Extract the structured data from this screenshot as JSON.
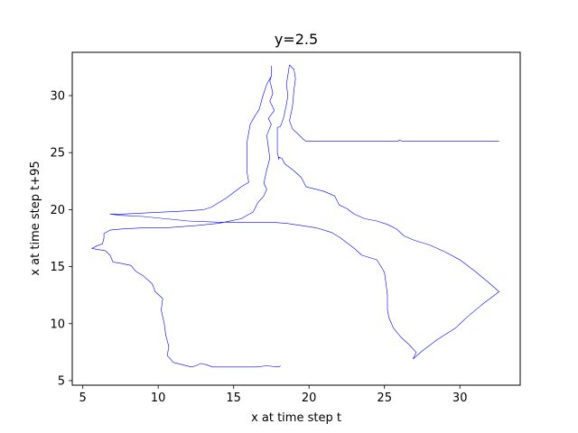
{
  "chart_data": {
    "type": "line",
    "title": "y=2.5",
    "xlabel": "x at time step t",
    "ylabel": "x at time step t+95",
    "xlim": [
      4.3,
      34.0
    ],
    "ylim": [
      4.6,
      33.8
    ],
    "xticks": [
      5,
      10,
      15,
      20,
      25,
      30
    ],
    "yticks": [
      5,
      10,
      15,
      20,
      25,
      30
    ],
    "grid": false,
    "series": [
      {
        "name": "phase trajectory",
        "color": "#0000ff",
        "points": [
          [
            18.1,
            6.3
          ],
          [
            18.0,
            6.2
          ],
          [
            17.2,
            6.3
          ],
          [
            16.5,
            6.2
          ],
          [
            15.5,
            6.2
          ],
          [
            14.5,
            6.2
          ],
          [
            13.6,
            6.2
          ],
          [
            13.2,
            6.4
          ],
          [
            12.8,
            6.5
          ],
          [
            12.5,
            6.3
          ],
          [
            12.2,
            6.2
          ],
          [
            11.6,
            6.4
          ],
          [
            11.0,
            6.6
          ],
          [
            10.6,
            7.2
          ],
          [
            10.7,
            8.0
          ],
          [
            10.5,
            9.0
          ],
          [
            10.4,
            10.0
          ],
          [
            10.2,
            11.2
          ],
          [
            10.3,
            12.2
          ],
          [
            9.8,
            12.8
          ],
          [
            9.6,
            13.5
          ],
          [
            9.0,
            14.2
          ],
          [
            8.5,
            14.6
          ],
          [
            8.2,
            15.1
          ],
          [
            7.5,
            15.3
          ],
          [
            7.0,
            15.4
          ],
          [
            6.8,
            16.0
          ],
          [
            6.5,
            16.4
          ],
          [
            6.0,
            16.5
          ],
          [
            5.6,
            16.6
          ],
          [
            5.9,
            16.8
          ],
          [
            6.3,
            17.0
          ],
          [
            6.4,
            17.5
          ],
          [
            6.4,
            17.9
          ],
          [
            6.8,
            18.2
          ],
          [
            7.5,
            18.3
          ],
          [
            9.0,
            18.4
          ],
          [
            10.5,
            18.4
          ],
          [
            12.5,
            18.6
          ],
          [
            14.0,
            18.8
          ],
          [
            15.5,
            19.2
          ],
          [
            16.3,
            19.8
          ],
          [
            16.6,
            20.6
          ],
          [
            17.0,
            21.2
          ],
          [
            17.2,
            21.8
          ],
          [
            17.0,
            22.3
          ],
          [
            17.2,
            23.5
          ],
          [
            17.4,
            24.5
          ],
          [
            17.3,
            25.5
          ],
          [
            17.2,
            26.5
          ],
          [
            17.5,
            27.5
          ],
          [
            17.3,
            28.0
          ],
          [
            17.7,
            28.7
          ],
          [
            17.4,
            29.5
          ],
          [
            17.6,
            30.2
          ],
          [
            17.5,
            30.8
          ],
          [
            17.4,
            31.3
          ],
          [
            17.5,
            31.7
          ],
          [
            17.5,
            32.6
          ],
          [
            17.5,
            31.7
          ],
          [
            17.2,
            31.0
          ],
          [
            16.9,
            29.8
          ],
          [
            16.7,
            28.8
          ],
          [
            16.4,
            28.2
          ],
          [
            16.1,
            27.5
          ],
          [
            15.9,
            26.0
          ],
          [
            15.9,
            24.5
          ],
          [
            15.9,
            23.2
          ],
          [
            16.0,
            22.4
          ],
          [
            15.5,
            22.0
          ],
          [
            15.0,
            21.5
          ],
          [
            14.5,
            21.0
          ],
          [
            14.0,
            20.6
          ],
          [
            13.5,
            20.2
          ],
          [
            13.0,
            20.0
          ],
          [
            12.0,
            19.9
          ],
          [
            10.5,
            19.8
          ],
          [
            9.0,
            19.7
          ],
          [
            7.5,
            19.6
          ],
          [
            6.8,
            19.6
          ],
          [
            7.5,
            19.5
          ],
          [
            9.0,
            19.4
          ],
          [
            10.5,
            19.2
          ],
          [
            12.0,
            19.0
          ],
          [
            14.0,
            18.9
          ],
          [
            16.0,
            18.9
          ],
          [
            17.5,
            18.9
          ],
          [
            18.5,
            18.8
          ],
          [
            19.5,
            18.6
          ],
          [
            20.5,
            18.4
          ],
          [
            21.5,
            18.0
          ],
          [
            22.0,
            17.6
          ],
          [
            22.5,
            17.1
          ],
          [
            23.0,
            16.6
          ],
          [
            23.5,
            16.0
          ],
          [
            24.0,
            15.8
          ],
          [
            24.5,
            15.6
          ],
          [
            25.0,
            14.5
          ],
          [
            25.1,
            13.5
          ],
          [
            25.2,
            12.5
          ],
          [
            25.2,
            11.2
          ],
          [
            25.3,
            10.5
          ],
          [
            25.6,
            9.6
          ],
          [
            26.1,
            8.8
          ],
          [
            26.6,
            8.2
          ],
          [
            27.1,
            7.5
          ],
          [
            26.9,
            6.9
          ],
          [
            27.5,
            7.6
          ],
          [
            28.5,
            8.6
          ],
          [
            29.7,
            9.6
          ],
          [
            30.5,
            10.6
          ],
          [
            31.5,
            11.7
          ],
          [
            32.6,
            12.8
          ],
          [
            32.0,
            13.5
          ],
          [
            31.0,
            14.6
          ],
          [
            30.0,
            15.6
          ],
          [
            29.0,
            16.3
          ],
          [
            28.0,
            16.9
          ],
          [
            27.0,
            17.3
          ],
          [
            26.3,
            17.7
          ],
          [
            25.8,
            18.3
          ],
          [
            25.2,
            18.7
          ],
          [
            24.5,
            19.0
          ],
          [
            23.7,
            19.2
          ],
          [
            23.0,
            19.6
          ],
          [
            22.5,
            20.1
          ],
          [
            22.0,
            20.4
          ],
          [
            21.7,
            21.2
          ],
          [
            21.0,
            21.6
          ],
          [
            20.4,
            21.8
          ],
          [
            19.8,
            22.0
          ],
          [
            19.5,
            22.8
          ],
          [
            19.0,
            23.4
          ],
          [
            18.4,
            24.0
          ],
          [
            18.2,
            24.5
          ],
          [
            18.0,
            24.6
          ],
          [
            18.0,
            24.4
          ],
          [
            17.9,
            25.0
          ],
          [
            17.9,
            26.5
          ],
          [
            17.9,
            27.2
          ],
          [
            18.1,
            27.3
          ],
          [
            18.3,
            28.0
          ],
          [
            18.5,
            29.2
          ],
          [
            18.6,
            30.0
          ],
          [
            18.5,
            31.0
          ],
          [
            18.6,
            31.8
          ],
          [
            18.7,
            32.7
          ],
          [
            19.0,
            32.3
          ],
          [
            19.1,
            31.5
          ],
          [
            19.0,
            30.5
          ],
          [
            18.9,
            29.0
          ],
          [
            18.7,
            27.8
          ],
          [
            18.9,
            27.1
          ],
          [
            19.3,
            26.6
          ],
          [
            19.6,
            26.2
          ],
          [
            19.8,
            26.0
          ],
          [
            20.2,
            26.0
          ],
          [
            22.0,
            26.0
          ],
          [
            24.0,
            26.0
          ],
          [
            25.9,
            26.0
          ],
          [
            26.0,
            26.1
          ],
          [
            26.2,
            26.0
          ],
          [
            28.0,
            26.0
          ],
          [
            30.0,
            26.0
          ],
          [
            32.0,
            26.0
          ],
          [
            32.6,
            26.0
          ]
        ]
      }
    ],
    "annotations": []
  }
}
